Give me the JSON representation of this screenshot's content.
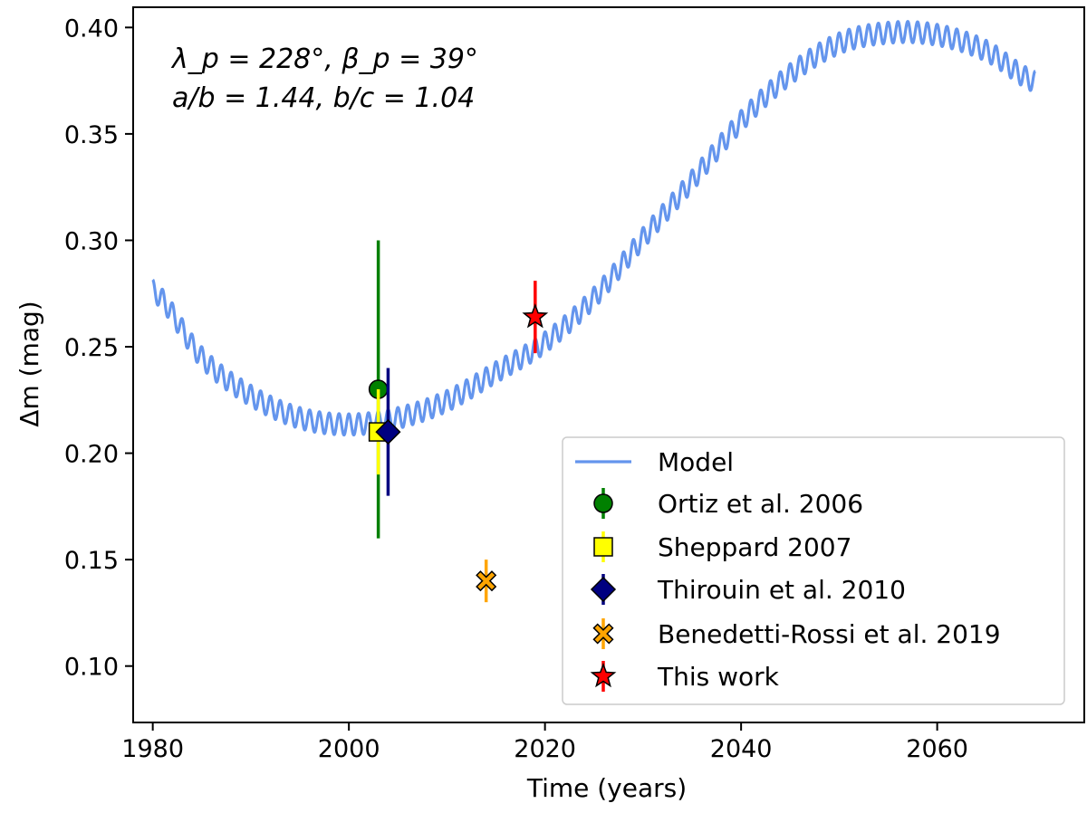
{
  "chart_data": {
    "type": "scatter",
    "xlabel": "Time (years)",
    "ylabel": "Δm (mag)",
    "xlim": [
      1978,
      2075
    ],
    "ylim": [
      0.0735,
      0.4095
    ],
    "xticks": [
      1980,
      2000,
      2020,
      2040,
      2060
    ],
    "yticks": [
      0.1,
      0.15,
      0.2,
      0.25,
      0.3,
      0.35,
      0.4
    ],
    "xtick_labels": [
      "1980",
      "2000",
      "2020",
      "2040",
      "2060"
    ],
    "ytick_labels": [
      "0.10",
      "0.15",
      "0.20",
      "0.25",
      "0.30",
      "0.35",
      "0.40"
    ],
    "grid": false,
    "legend_position": "lower-right",
    "annotations": [
      "λ_p = 228°, β_p = 39°",
      "a/b = 1.44, b/c = 1.04"
    ],
    "model": {
      "name": "Model",
      "color": "#6495ed",
      "x_start": 1980,
      "x_end": 2070,
      "oscillation_period_years": 1.0,
      "oscillation_amplitude": 0.005,
      "baseline": [
        [
          1980,
          0.2765
        ],
        [
          1985,
          0.245
        ],
        [
          1990,
          0.227
        ],
        [
          1995,
          0.2165
        ],
        [
          2000,
          0.2135
        ],
        [
          2005,
          0.2165
        ],
        [
          2010,
          0.2245
        ],
        [
          2015,
          0.238
        ],
        [
          2020,
          0.252
        ],
        [
          2025,
          0.273
        ],
        [
          2030,
          0.301
        ],
        [
          2035,
          0.328
        ],
        [
          2040,
          0.356
        ],
        [
          2045,
          0.378
        ],
        [
          2050,
          0.3925
        ],
        [
          2055,
          0.3975
        ],
        [
          2060,
          0.3965
        ],
        [
          2065,
          0.389
        ],
        [
          2070,
          0.3745
        ]
      ]
    },
    "series": [
      {
        "name": "Ortiz et al. 2006",
        "x": 2003.0,
        "y": 0.23,
        "yerr_low": 0.16,
        "yerr_high": 0.3,
        "marker": "circle",
        "color": "#008000",
        "err_color": "#008000"
      },
      {
        "name": "Sheppard 2007",
        "x": 2003.0,
        "y": 0.21,
        "yerr_low": 0.19,
        "yerr_high": 0.23,
        "marker": "square",
        "color": "#ffff00",
        "err_color": "#ffff00"
      },
      {
        "name": "Thirouin et al. 2010",
        "x": 2004.0,
        "y": 0.21,
        "yerr_low": 0.18,
        "yerr_high": 0.24,
        "marker": "diamond",
        "color": "#000080",
        "err_color": "#000080"
      },
      {
        "name": "Benedetti-Rossi et al. 2019",
        "x": 2014.0,
        "y": 0.14,
        "yerr_low": 0.13,
        "yerr_high": 0.15,
        "marker": "x",
        "color": "#ffa500",
        "err_color": "#ffa500"
      },
      {
        "name": "This work",
        "x": 2019.0,
        "y": 0.264,
        "yerr_low": 0.247,
        "yerr_high": 0.281,
        "marker": "star",
        "color": "#ff0000",
        "err_color": "#ff0000"
      }
    ]
  }
}
